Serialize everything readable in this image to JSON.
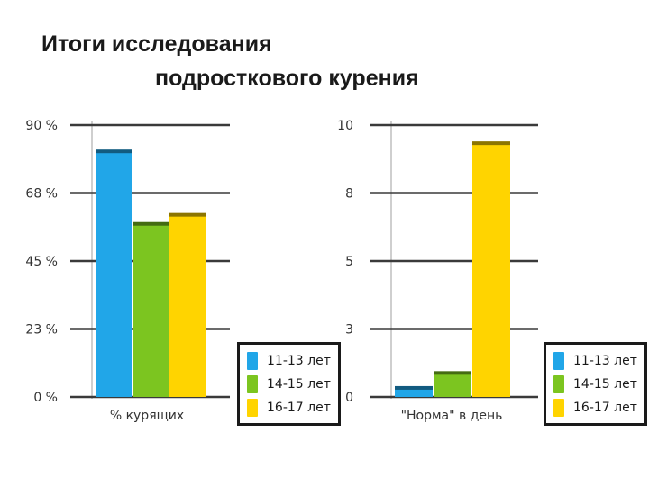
{
  "title": {
    "line1": "Итоги исследования",
    "line2": "подросткового курения"
  },
  "colors": {
    "blue": "#21a6e8",
    "green": "#7cc520",
    "yellow": "#ffd400",
    "grid": "#3a3a3a",
    "axis_text": "#333333"
  },
  "chart_data": [
    {
      "type": "bar",
      "xlabel": "% курящих",
      "ytick_labels": [
        "90 %",
        "68 %",
        "45 %",
        "23 %",
        "0 %"
      ],
      "ylim": [
        0,
        90
      ],
      "grid": true,
      "legend_position": "right",
      "series": [
        {
          "name": "11-13 лет",
          "values": [
            81
          ],
          "color": "#21a6e8"
        },
        {
          "name": "14-15 лет",
          "values": [
            57
          ],
          "color": "#7cc520"
        },
        {
          "name": "16-17 лет",
          "values": [
            60
          ],
          "color": "#ffd400"
        }
      ]
    },
    {
      "type": "bar",
      "xlabel": "\"Норма\" в день",
      "ytick_labels": [
        "10",
        "8",
        "5",
        "3",
        "0"
      ],
      "ylim": [
        0,
        10
      ],
      "grid": true,
      "legend_position": "right",
      "series": [
        {
          "name": "11-13 лет",
          "values": [
            0.3
          ],
          "color": "#21a6e8"
        },
        {
          "name": "14-15 лет",
          "values": [
            0.85
          ],
          "color": "#7cc520"
        },
        {
          "name": "16-17 лет",
          "values": [
            9.3
          ],
          "color": "#ffd400"
        }
      ]
    }
  ]
}
